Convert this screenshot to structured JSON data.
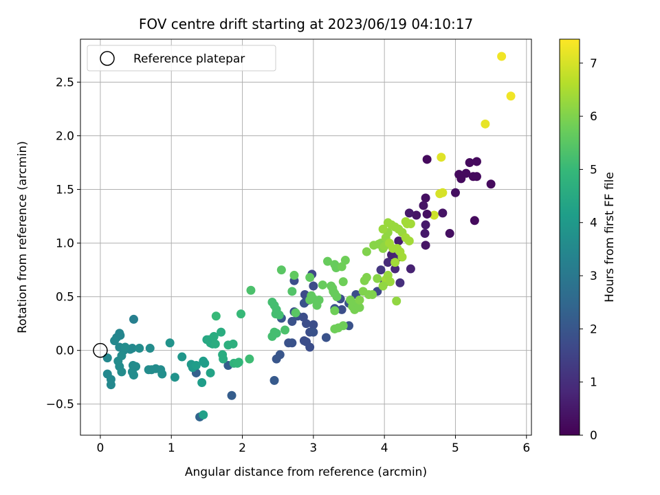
{
  "chart_data": {
    "type": "scatter",
    "title": "FOV centre drift starting at 2023/06/19 04:10:17",
    "xlabel": "Angular distance from reference (arcmin)",
    "ylabel": "Rotation from reference (arcmin)",
    "xlim": [
      -0.28,
      6.07
    ],
    "ylim": [
      -0.79,
      2.9
    ],
    "xticks": [
      0,
      1,
      2,
      3,
      4,
      5,
      6
    ],
    "xtick_labels": [
      "0",
      "1",
      "2",
      "3",
      "4",
      "5",
      "6"
    ],
    "yticks": [
      -0.5,
      0.0,
      0.5,
      1.0,
      1.5,
      2.0,
      2.5
    ],
    "ytick_labels": [
      "−0.5",
      "0.0",
      "0.5",
      "1.0",
      "1.5",
      "2.0",
      "2.5"
    ],
    "grid": true,
    "legend": {
      "position": "upper-left",
      "label": "Reference platepar"
    },
    "reference_point": {
      "x": 0,
      "y": 0
    },
    "colorbar": {
      "label": "Hours from first FF file",
      "min": 0,
      "max": 7.45,
      "ticks": [
        0,
        1,
        2,
        3,
        4,
        5,
        6,
        7
      ],
      "tick_labels": [
        "0",
        "1",
        "2",
        "3",
        "4",
        "5",
        "6",
        "7"
      ],
      "colormap": "viridis",
      "stops": [
        "#440154",
        "#482878",
        "#3e4989",
        "#31688e",
        "#26828e",
        "#1f9e89",
        "#35b779",
        "#6ece58",
        "#b5de2b",
        "#fde725"
      ]
    },
    "points": [
      [
        5.65,
        2.74,
        7.3
      ],
      [
        5.78,
        2.37,
        7.3
      ],
      [
        5.42,
        2.11,
        7.2
      ],
      [
        4.8,
        1.8,
        7.1
      ],
      [
        4.82,
        1.47,
        7.0
      ],
      [
        4.78,
        1.46,
        7.0
      ],
      [
        4.7,
        1.26,
        6.9
      ],
      [
        4.6,
        1.78,
        0.2
      ],
      [
        5.2,
        1.75,
        0.2
      ],
      [
        5.3,
        1.76,
        0.2
      ],
      [
        5.15,
        1.65,
        0.2
      ],
      [
        5.05,
        1.64,
        0.2
      ],
      [
        5.08,
        1.6,
        0.2
      ],
      [
        5.25,
        1.62,
        0.2
      ],
      [
        5.3,
        1.62,
        0.2
      ],
      [
        5.5,
        1.55,
        0.2
      ],
      [
        5.0,
        1.47,
        0.3
      ],
      [
        4.58,
        1.42,
        0.3
      ],
      [
        4.55,
        1.35,
        0.4
      ],
      [
        4.82,
        1.28,
        0.4
      ],
      [
        4.6,
        1.27,
        0.3
      ],
      [
        4.45,
        1.26,
        0.4
      ],
      [
        4.35,
        1.28,
        0.5
      ],
      [
        4.58,
        1.17,
        0.5
      ],
      [
        5.27,
        1.21,
        0.2
      ],
      [
        4.92,
        1.09,
        0.3
      ],
      [
        4.57,
        1.09,
        0.5
      ],
      [
        4.58,
        0.98,
        0.4
      ],
      [
        4.2,
        1.02,
        0.6
      ],
      [
        4.1,
        0.89,
        0.7
      ],
      [
        4.2,
        0.87,
        0.8
      ],
      [
        4.15,
        0.76,
        0.8
      ],
      [
        4.05,
        0.82,
        0.9
      ],
      [
        4.37,
        0.76,
        0.7
      ],
      [
        4.22,
        0.63,
        1.0
      ],
      [
        3.95,
        0.75,
        1.2
      ],
      [
        4.0,
        0.63,
        1.4
      ],
      [
        3.9,
        0.55,
        1.6
      ],
      [
        3.6,
        0.52,
        1.8
      ],
      [
        3.5,
        0.44,
        1.9
      ],
      [
        3.3,
        0.39,
        1.9
      ],
      [
        3.38,
        0.48,
        1.8
      ],
      [
        3.4,
        0.38,
        1.8
      ],
      [
        2.98,
        0.71,
        1.6
      ],
      [
        3.0,
        0.6,
        1.7
      ],
      [
        2.73,
        0.65,
        1.8
      ],
      [
        2.88,
        0.52,
        1.7
      ],
      [
        2.9,
        0.46,
        1.8
      ],
      [
        2.87,
        0.44,
        1.9
      ],
      [
        2.73,
        0.36,
        1.9
      ],
      [
        2.78,
        0.32,
        1.9
      ],
      [
        2.86,
        0.31,
        1.8
      ],
      [
        2.9,
        0.25,
        1.8
      ],
      [
        2.7,
        0.27,
        1.9
      ],
      [
        3.0,
        0.24,
        1.8
      ],
      [
        2.55,
        0.3,
        2.0
      ],
      [
        2.95,
        0.17,
        1.8
      ],
      [
        3.0,
        0.17,
        1.9
      ],
      [
        3.18,
        0.12,
        1.9
      ],
      [
        3.5,
        0.23,
        1.9
      ],
      [
        2.65,
        0.07,
        1.9
      ],
      [
        2.7,
        0.07,
        1.9
      ],
      [
        2.87,
        0.09,
        1.8
      ],
      [
        2.9,
        0.08,
        1.8
      ],
      [
        2.95,
        0.03,
        1.8
      ],
      [
        2.53,
        -0.04,
        2.0
      ],
      [
        2.48,
        -0.08,
        2.0
      ],
      [
        2.45,
        -0.28,
        2.1
      ],
      [
        1.85,
        -0.42,
        2.2
      ],
      [
        1.8,
        -0.14,
        2.2
      ],
      [
        1.35,
        -0.21,
        2.3
      ],
      [
        1.4,
        -0.62,
        2.4
      ],
      [
        0.47,
        0.29,
        3.2
      ],
      [
        0.27,
        0.16,
        3.4
      ],
      [
        0.28,
        0.14,
        3.4
      ],
      [
        0.23,
        0.12,
        3.4
      ],
      [
        0.2,
        0.09,
        3.5
      ],
      [
        0.27,
        0.03,
        3.5
      ],
      [
        0.33,
        0.0,
        3.5
      ],
      [
        0.42,
        0.01,
        3.5
      ],
      [
        0.45,
        0.02,
        3.5
      ],
      [
        0.35,
        0.03,
        3.6
      ],
      [
        0.55,
        0.02,
        3.6
      ],
      [
        0.7,
        0.02,
        3.6
      ],
      [
        0.25,
        -0.1,
        3.6
      ],
      [
        0.3,
        -0.05,
        3.6
      ],
      [
        0.27,
        -0.15,
        3.6
      ],
      [
        0.3,
        -0.2,
        3.6
      ],
      [
        0.1,
        -0.07,
        3.5
      ],
      [
        0.1,
        -0.22,
        3.5
      ],
      [
        0.15,
        -0.27,
        3.5
      ],
      [
        0.15,
        -0.32,
        3.5
      ],
      [
        0.46,
        -0.14,
        3.6
      ],
      [
        0.5,
        -0.15,
        3.6
      ],
      [
        0.45,
        -0.2,
        3.6
      ],
      [
        0.47,
        -0.23,
        3.6
      ],
      [
        0.68,
        -0.18,
        3.6
      ],
      [
        0.72,
        -0.18,
        3.6
      ],
      [
        0.78,
        -0.17,
        3.6
      ],
      [
        0.85,
        -0.18,
        3.6
      ],
      [
        0.87,
        -0.22,
        3.7
      ],
      [
        0.98,
        0.07,
        3.8
      ],
      [
        1.05,
        -0.25,
        3.8
      ],
      [
        1.15,
        -0.06,
        3.9
      ],
      [
        1.28,
        -0.13,
        4.0
      ],
      [
        1.3,
        -0.16,
        4.0
      ],
      [
        1.35,
        -0.14,
        4.1
      ],
      [
        1.45,
        -0.1,
        4.1
      ],
      [
        1.47,
        -0.12,
        4.1
      ],
      [
        1.43,
        -0.3,
        4.1
      ],
      [
        1.45,
        -0.6,
        4.2
      ],
      [
        1.55,
        -0.21,
        4.3
      ],
      [
        1.5,
        0.1,
        4.4
      ],
      [
        1.53,
        0.1,
        4.5
      ],
      [
        1.55,
        0.07,
        4.5
      ],
      [
        1.58,
        0.06,
        4.5
      ],
      [
        1.62,
        0.06,
        4.6
      ],
      [
        1.6,
        0.13,
        4.6
      ],
      [
        1.7,
        0.17,
        4.6
      ],
      [
        1.72,
        -0.04,
        4.6
      ],
      [
        1.73,
        -0.08,
        4.6
      ],
      [
        1.8,
        0.05,
        4.7
      ],
      [
        1.87,
        0.06,
        4.7
      ],
      [
        1.88,
        -0.12,
        4.8
      ],
      [
        1.93,
        -0.12,
        4.9
      ],
      [
        1.95,
        -0.11,
        4.9
      ],
      [
        1.98,
        0.34,
        5.0
      ],
      [
        1.63,
        0.32,
        5.0
      ],
      [
        2.1,
        -0.08,
        5.1
      ],
      [
        2.12,
        0.56,
        5.3
      ],
      [
        2.42,
        0.45,
        5.2
      ],
      [
        2.45,
        0.42,
        5.2
      ],
      [
        2.48,
        0.38,
        5.2
      ],
      [
        2.47,
        0.34,
        5.2
      ],
      [
        2.52,
        0.33,
        5.2
      ],
      [
        2.45,
        0.17,
        5.2
      ],
      [
        2.48,
        0.16,
        5.2
      ],
      [
        2.42,
        0.13,
        5.2
      ],
      [
        2.6,
        0.19,
        5.3
      ],
      [
        2.7,
        0.55,
        5.4
      ],
      [
        2.55,
        0.75,
        5.5
      ],
      [
        2.73,
        0.7,
        5.6
      ],
      [
        2.75,
        0.35,
        5.5
      ],
      [
        2.95,
        0.68,
        5.6
      ],
      [
        2.97,
        0.51,
        5.6
      ],
      [
        2.95,
        0.47,
        5.6
      ],
      [
        3.0,
        0.48,
        5.6
      ],
      [
        3.05,
        0.42,
        5.6
      ],
      [
        3.08,
        0.47,
        5.6
      ],
      [
        3.13,
        0.61,
        5.7
      ],
      [
        3.2,
        0.83,
        5.7
      ],
      [
        3.3,
        0.8,
        5.7
      ],
      [
        3.32,
        0.77,
        5.7
      ],
      [
        3.25,
        0.6,
        5.7
      ],
      [
        3.27,
        0.58,
        5.7
      ],
      [
        3.28,
        0.55,
        5.7
      ],
      [
        3.3,
        0.53,
        5.7
      ],
      [
        3.33,
        0.5,
        5.7
      ],
      [
        3.45,
        0.84,
        5.8
      ],
      [
        3.4,
        0.78,
        5.8
      ],
      [
        3.42,
        0.64,
        5.8
      ],
      [
        3.3,
        0.37,
        5.8
      ],
      [
        3.3,
        0.2,
        5.8
      ],
      [
        3.35,
        0.21,
        5.8
      ],
      [
        3.42,
        0.23,
        5.8
      ],
      [
        3.52,
        0.47,
        5.9
      ],
      [
        3.55,
        0.41,
        5.9
      ],
      [
        3.58,
        0.38,
        5.9
      ],
      [
        3.62,
        0.44,
        5.9
      ],
      [
        3.65,
        0.4,
        5.9
      ],
      [
        3.65,
        0.47,
        6.0
      ],
      [
        3.7,
        0.55,
        6.0
      ],
      [
        3.75,
        0.92,
        6.0
      ],
      [
        3.75,
        0.68,
        6.0
      ],
      [
        3.72,
        0.65,
        6.0
      ],
      [
        3.78,
        0.52,
        6.0
      ],
      [
        3.83,
        0.52,
        6.0
      ],
      [
        3.85,
        0.98,
        6.1
      ],
      [
        3.9,
        0.67,
        6.1
      ],
      [
        3.92,
        0.99,
        6.1
      ],
      [
        3.95,
        1.0,
        6.1
      ],
      [
        3.98,
        0.95,
        6.1
      ],
      [
        4.0,
        0.97,
        6.2
      ],
      [
        4.02,
        1.05,
        6.2
      ],
      [
        4.05,
        1.1,
        6.2
      ],
      [
        3.98,
        1.13,
        6.3
      ],
      [
        4.05,
        1.19,
        6.3
      ],
      [
        4.1,
        1.17,
        6.3
      ],
      [
        4.15,
        1.15,
        6.3
      ],
      [
        4.2,
        1.13,
        6.3
      ],
      [
        4.25,
        1.1,
        6.3
      ],
      [
        4.07,
        1.0,
        6.4
      ],
      [
        4.12,
        0.95,
        6.4
      ],
      [
        4.18,
        0.95,
        6.4
      ],
      [
        4.22,
        0.92,
        6.4
      ],
      [
        4.25,
        0.87,
        6.4
      ],
      [
        4.3,
        1.2,
        6.4
      ],
      [
        4.32,
        1.18,
        6.4
      ],
      [
        4.37,
        1.18,
        6.4
      ],
      [
        4.3,
        1.05,
        6.4
      ],
      [
        4.35,
        1.02,
        6.4
      ],
      [
        4.15,
        0.82,
        6.4
      ],
      [
        4.02,
        0.66,
        6.4
      ],
      [
        4.05,
        0.7,
        6.3
      ],
      [
        4.08,
        0.64,
        6.3
      ],
      [
        3.98,
        0.6,
        6.2
      ],
      [
        4.17,
        0.46,
        6.2
      ]
    ]
  }
}
